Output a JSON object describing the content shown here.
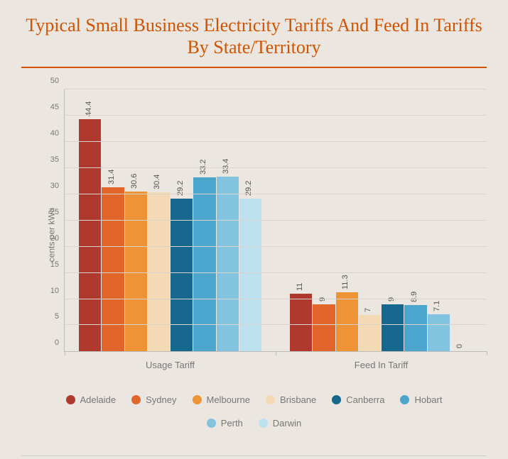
{
  "title": "Typical Small Business Electricity Tariffs And Feed In Tariffs By State/Territory",
  "ylabel": "cents per kWh",
  "ylim": [
    0,
    50
  ],
  "ytick_step": 5,
  "background": "#ebe6e0",
  "title_color": "#d35400",
  "grid_color": "#d8d3cd",
  "series": [
    {
      "name": "Adelaide",
      "color": "#b0392e"
    },
    {
      "name": "Sydney",
      "color": "#e2662c"
    },
    {
      "name": "Melbourne",
      "color": "#ee9336"
    },
    {
      "name": "Brisbane",
      "color": "#f4d9b5"
    },
    {
      "name": "Canberra",
      "color": "#16688e"
    },
    {
      "name": "Hobart",
      "color": "#4ca5cd"
    },
    {
      "name": "Perth",
      "color": "#82c3df"
    },
    {
      "name": "Darwin",
      "color": "#bde1ee"
    }
  ],
  "groups": [
    {
      "label": "Usage Tariff",
      "values": [
        44.4,
        31.4,
        30.6,
        30.4,
        29.2,
        33.2,
        33.4,
        29.2
      ]
    },
    {
      "label": "Feed In Tariff",
      "values": [
        11,
        9,
        11.3,
        7,
        9,
        8.9,
        7.1,
        0
      ]
    }
  ]
}
